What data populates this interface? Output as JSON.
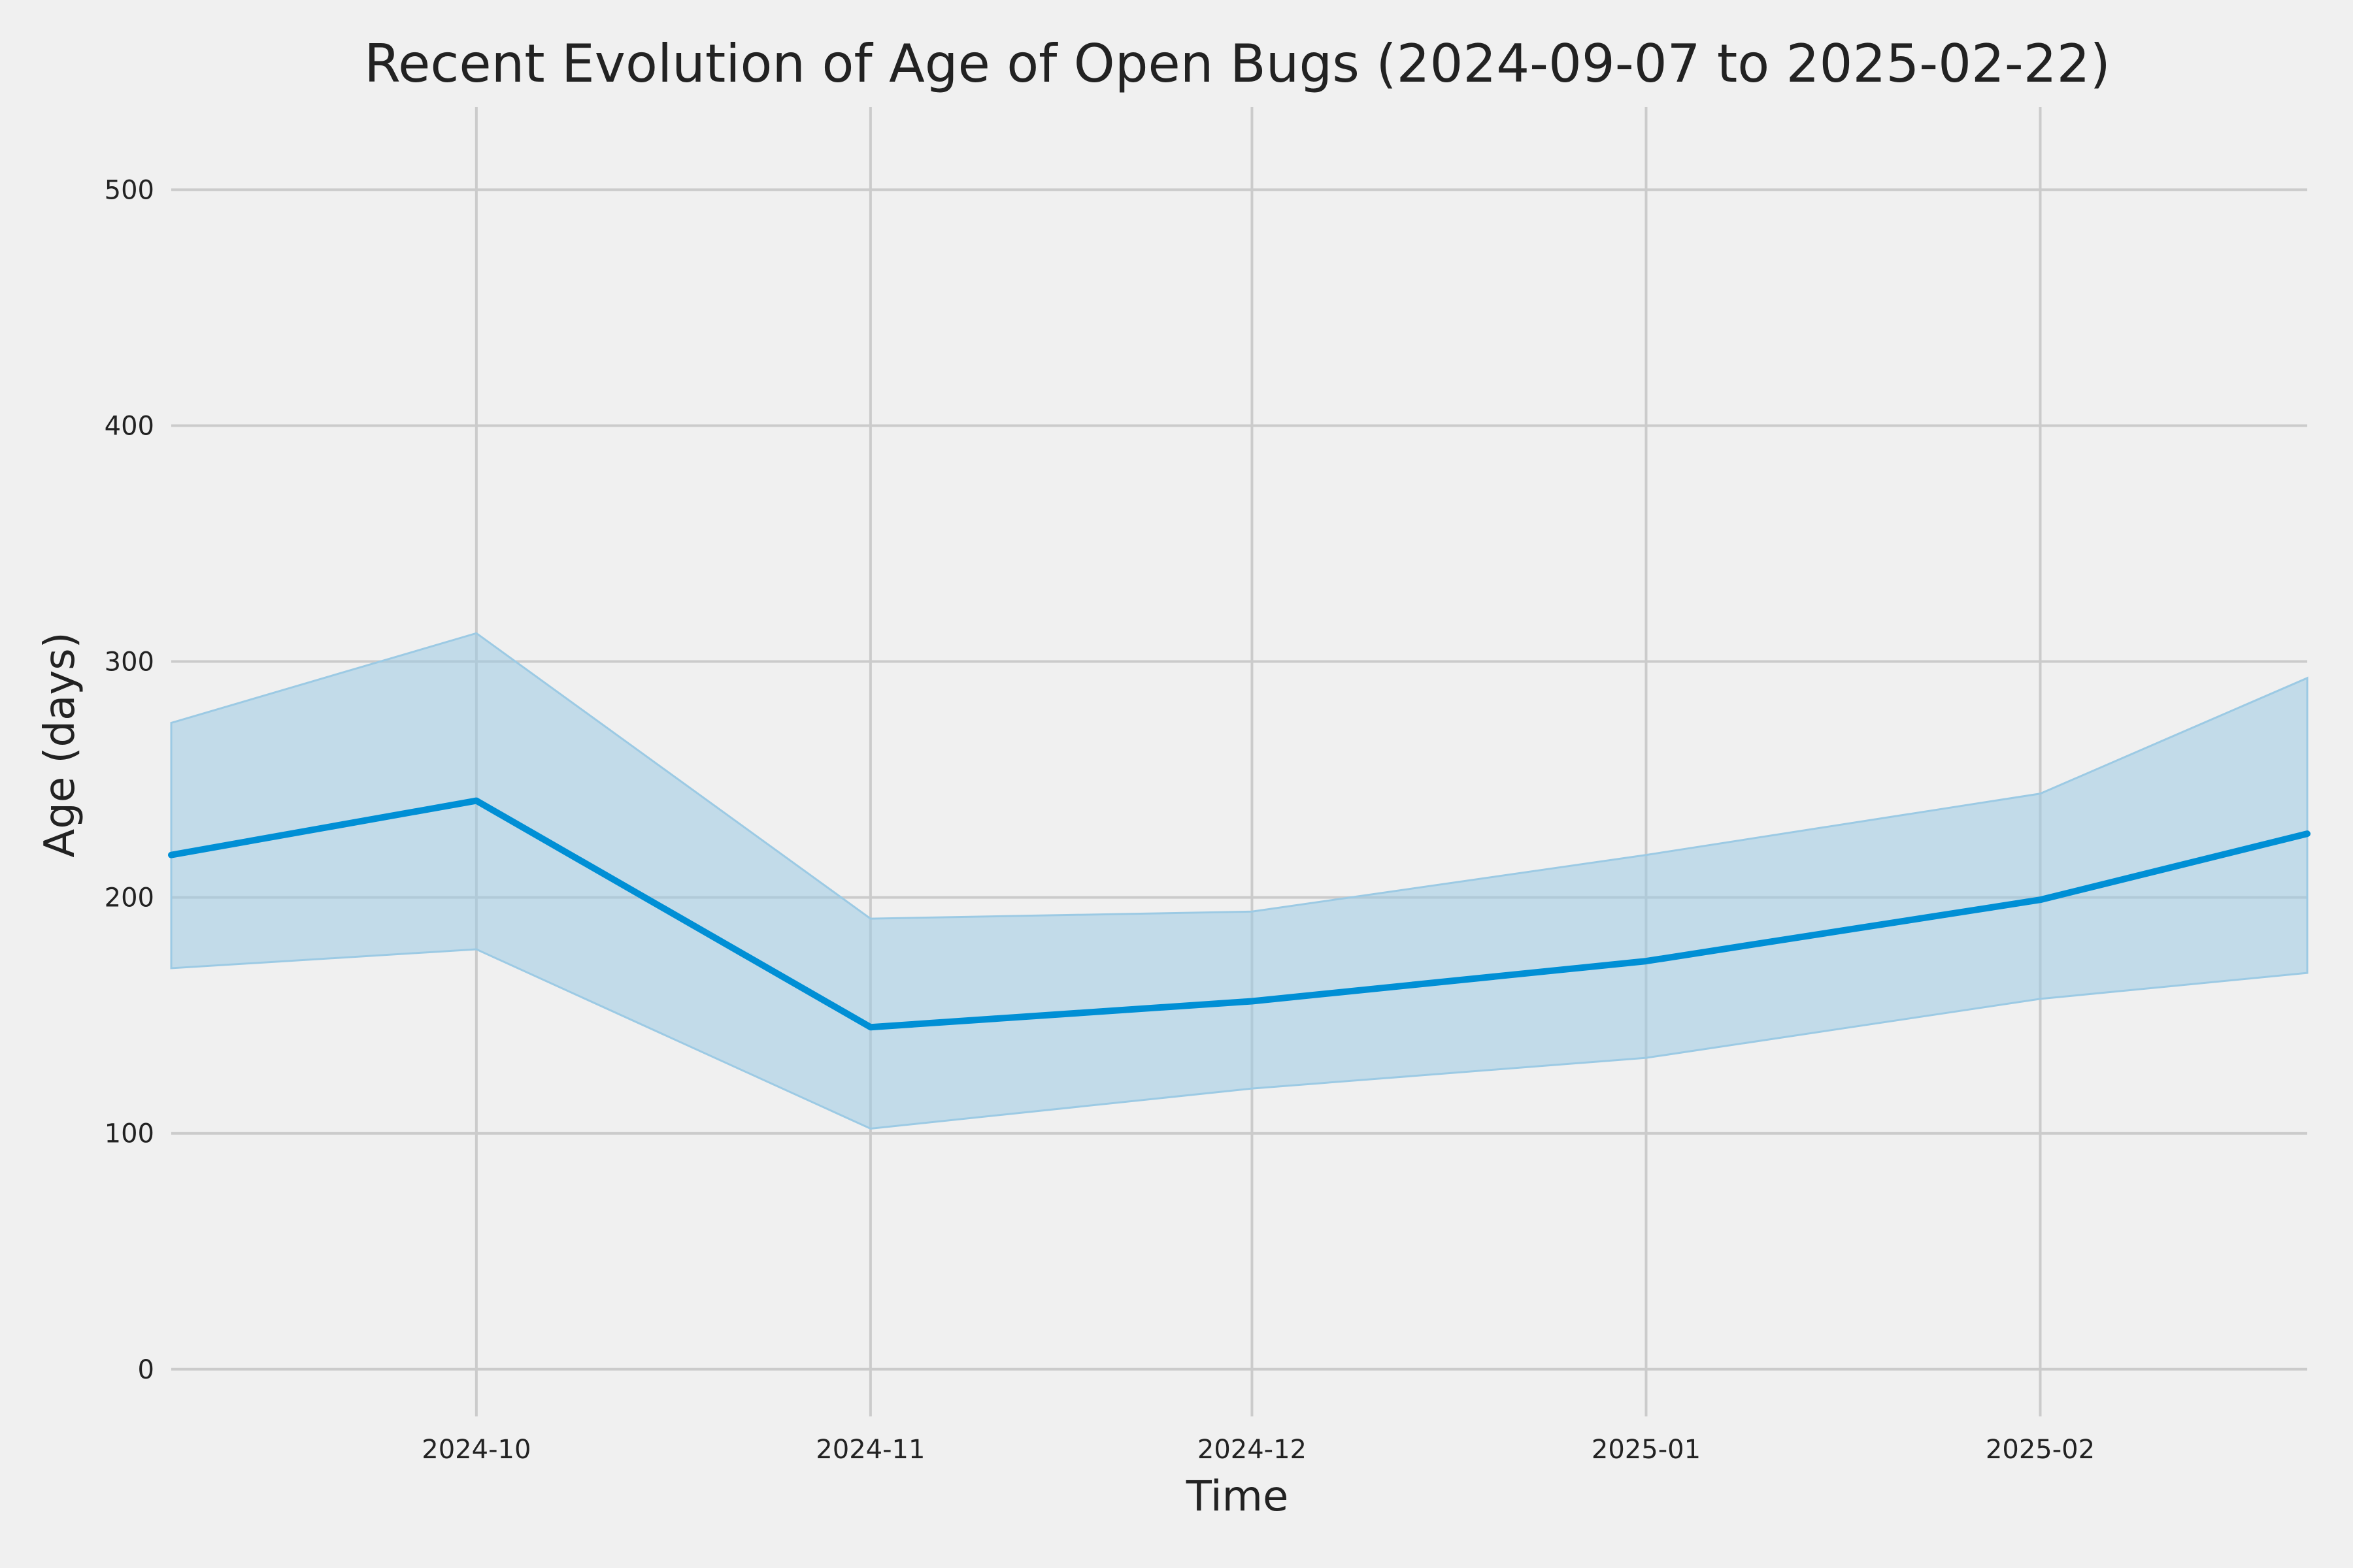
{
  "chart_data": {
    "type": "area",
    "title": "Recent Evolution of Age of Open Bugs (2024-09-07 to 2025-02-22)",
    "xlabel": "Time",
    "ylabel": "Age (days)",
    "xlim": [
      "2024-09-07",
      "2025-02-22"
    ],
    "ylim": [
      -20,
      535
    ],
    "x_ticks": [
      "2024-10",
      "2024-11",
      "2024-12",
      "2025-01",
      "2025-02"
    ],
    "y_ticks": [
      0,
      100,
      200,
      300,
      400,
      500
    ],
    "grid": true,
    "x": [
      "2024-09-07",
      "2024-10-01",
      "2024-11-01",
      "2024-12-01",
      "2025-01-01",
      "2025-02-01",
      "2025-02-22"
    ],
    "series": [
      {
        "values": [
          218,
          241,
          145,
          156,
          173,
          199,
          227
        ],
        "lower": [
          170,
          178,
          102,
          119,
          132,
          157,
          168
        ],
        "upper": [
          274,
          312,
          191,
          194,
          218,
          244,
          293
        ]
      }
    ],
    "colors": {
      "line": "#008fd5",
      "band": "#9ccae4",
      "grid": "#cbcbcb",
      "background": "#f0f0f0"
    }
  }
}
